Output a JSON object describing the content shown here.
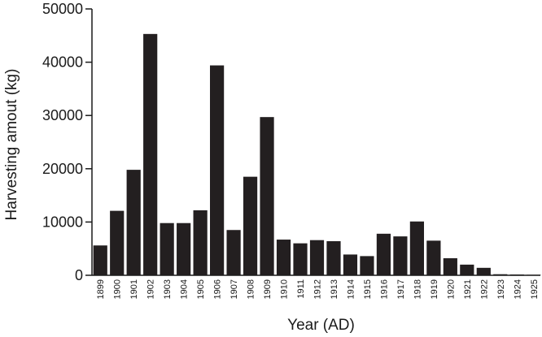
{
  "chart_data": {
    "type": "bar",
    "title": "",
    "xlabel": "Year (AD)",
    "ylabel": "Harvesting amout (kg)",
    "ylim": [
      0,
      50000
    ],
    "yticks": [
      "0",
      "10000",
      "20000",
      "30000",
      "40000",
      "50000"
    ],
    "grid": false,
    "bar_color": "#231f20",
    "categories": [
      "1899",
      "1900",
      "1901",
      "1902",
      "1903",
      "1904",
      "1905",
      "1906",
      "1907",
      "1908",
      "1909",
      "1910",
      "1911",
      "1912",
      "1913",
      "1914",
      "1915",
      "1916",
      "1917",
      "1918",
      "1919",
      "1920",
      "1921",
      "1922",
      "1923",
      "1924",
      "1925"
    ],
    "values": [
      5600,
      12100,
      19800,
      45300,
      9800,
      9800,
      12200,
      39400,
      8500,
      18500,
      29700,
      6700,
      6000,
      6600,
      6400,
      3900,
      3600,
      7800,
      7300,
      10100,
      6500,
      3200,
      2000,
      1400,
      200,
      150,
      100
    ]
  }
}
